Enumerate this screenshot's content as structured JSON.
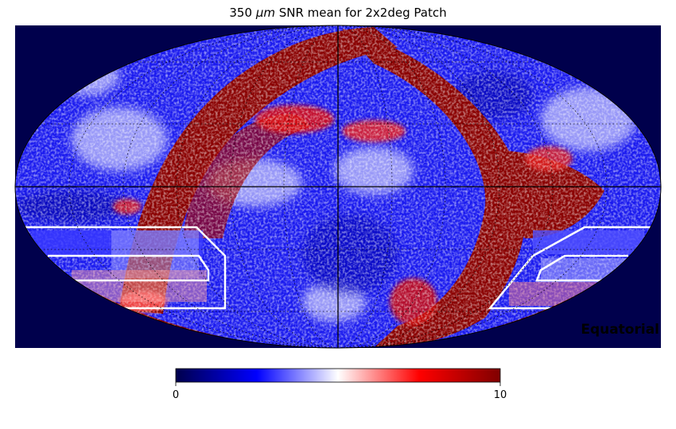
{
  "chart_data": {
    "type": "heatmap",
    "projection": "mollweide",
    "title_prefix": "350",
    "title_unit": "μm",
    "title_suffix": "SNR mean for 2x2deg Patch",
    "coord_label": "Equatorial",
    "colorbar": {
      "min": 0,
      "max": 10,
      "tick_labels": [
        "0",
        "10"
      ],
      "colormap": "seismic"
    },
    "graticule": true,
    "background_color": "#00004c",
    "colors": {
      "low": "#00004c",
      "mid_low": "#0000ff",
      "mid": "#ffffff",
      "mid_high": "#ff0000",
      "high": "#800000"
    }
  }
}
